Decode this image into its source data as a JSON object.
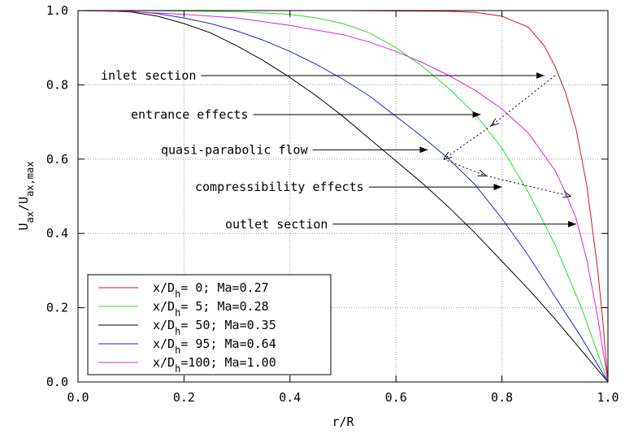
{
  "chart_data": {
    "type": "line",
    "xlabel": "r/R",
    "ylabel": {
      "base": "U",
      "sub1": "ax",
      "mid": "/U",
      "sub2": "ax,max"
    },
    "xlim": [
      0,
      1
    ],
    "ylim": [
      0,
      1
    ],
    "xticks": [
      "0.0",
      "0.2",
      "0.4",
      "0.6",
      "0.8",
      "1.0"
    ],
    "yticks": [
      "0.0",
      "0.2",
      "0.4",
      "0.6",
      "0.8",
      "1.0"
    ],
    "grid": true,
    "legend_position": "bottom-left",
    "series": [
      {
        "name": "x/D_h=  0; Ma=0.27",
        "legend": {
          "pre": "x/D",
          "sub": "h",
          "post": "=  0; Ma=0.27"
        },
        "color": "#e01010",
        "x": [
          0,
          0.2,
          0.4,
          0.5,
          0.6,
          0.7,
          0.75,
          0.8,
          0.85,
          0.88,
          0.9,
          0.92,
          0.94,
          0.96,
          0.98,
          0.99,
          1.0
        ],
        "y": [
          1.0,
          1.0,
          1.0,
          1.0,
          0.999,
          0.998,
          0.995,
          0.985,
          0.955,
          0.905,
          0.85,
          0.78,
          0.68,
          0.53,
          0.31,
          0.17,
          0.0
        ]
      },
      {
        "name": "x/D_h=  5; Ma=0.28",
        "legend": {
          "pre": "x/D",
          "sub": "h",
          "post": "=  5; Ma=0.28"
        },
        "color": "#20e020",
        "x": [
          0,
          0.1,
          0.2,
          0.3,
          0.4,
          0.45,
          0.5,
          0.55,
          0.6,
          0.65,
          0.7,
          0.75,
          0.8,
          0.85,
          0.9,
          0.95,
          0.98,
          1.0
        ],
        "y": [
          1.0,
          1.0,
          0.999,
          0.997,
          0.99,
          0.98,
          0.965,
          0.94,
          0.9,
          0.85,
          0.79,
          0.72,
          0.63,
          0.51,
          0.37,
          0.2,
          0.08,
          0.0
        ]
      },
      {
        "name": "x/D_h= 50; Ma=0.35",
        "legend": {
          "pre": "x/D",
          "sub": "h",
          "post": "= 50; Ma=0.35"
        },
        "color": "#000000",
        "x": [
          0,
          0.05,
          0.1,
          0.15,
          0.2,
          0.25,
          0.3,
          0.35,
          0.4,
          0.45,
          0.5,
          0.55,
          0.6,
          0.65,
          0.7,
          0.75,
          0.8,
          0.85,
          0.9,
          0.95,
          1.0
        ],
        "y": [
          1.0,
          0.999,
          0.996,
          0.985,
          0.965,
          0.94,
          0.905,
          0.865,
          0.82,
          0.77,
          0.715,
          0.655,
          0.595,
          0.535,
          0.47,
          0.4,
          0.325,
          0.25,
          0.17,
          0.085,
          0.0
        ]
      },
      {
        "name": "x/D_h= 95; Ma=0.64",
        "legend": {
          "pre": "x/D",
          "sub": "h",
          "post": "= 95; Ma=0.64"
        },
        "color": "#2020e0",
        "x": [
          0,
          0.05,
          0.1,
          0.15,
          0.2,
          0.25,
          0.3,
          0.35,
          0.4,
          0.45,
          0.5,
          0.55,
          0.6,
          0.65,
          0.7,
          0.75,
          0.8,
          0.85,
          0.9,
          0.95,
          1.0
        ],
        "y": [
          1.0,
          1.0,
          0.998,
          0.992,
          0.98,
          0.965,
          0.945,
          0.92,
          0.89,
          0.855,
          0.815,
          0.77,
          0.715,
          0.66,
          0.6,
          0.53,
          0.44,
          0.34,
          0.23,
          0.12,
          0.0
        ]
      },
      {
        "name": "x/D_h=100; Ma=1.00",
        "legend": {
          "pre": "x/D",
          "sub": "h",
          "post": "=100; Ma=1.00"
        },
        "color": "#e020e0",
        "x": [
          0,
          0.1,
          0.2,
          0.3,
          0.4,
          0.5,
          0.55,
          0.6,
          0.65,
          0.7,
          0.75,
          0.8,
          0.85,
          0.9,
          0.92,
          0.94,
          0.96,
          0.98,
          1.0
        ],
        "y": [
          1.0,
          0.997,
          0.99,
          0.98,
          0.96,
          0.935,
          0.915,
          0.89,
          0.86,
          0.825,
          0.785,
          0.735,
          0.67,
          0.57,
          0.51,
          0.44,
          0.33,
          0.18,
          0.0
        ]
      }
    ],
    "annotations": [
      {
        "text": "inlet section",
        "arrow_to": [
          0.88,
          0.825
        ]
      },
      {
        "text": "entrance effects",
        "arrow_to": [
          0.76,
          0.72
        ]
      },
      {
        "text": "quasi-parabolic flow",
        "arrow_to": [
          0.66,
          0.625
        ]
      },
      {
        "text": "compressibility effects",
        "arrow_to": [
          0.8,
          0.525
        ]
      },
      {
        "text": "outlet section",
        "arrow_to": [
          0.94,
          0.425
        ]
      }
    ],
    "dotted_path": [
      [
        0.9,
        0.825
      ],
      [
        0.78,
        0.69
      ],
      [
        0.69,
        0.6
      ],
      [
        0.77,
        0.555
      ],
      [
        0.93,
        0.5
      ]
    ]
  }
}
